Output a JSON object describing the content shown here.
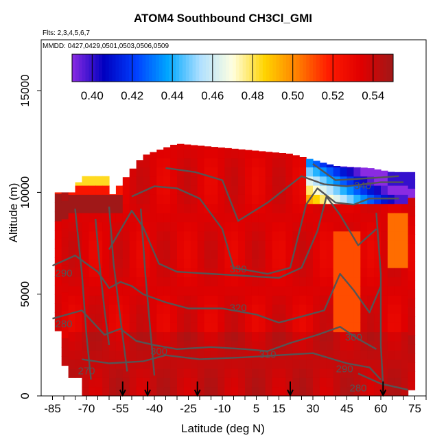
{
  "chart_data": {
    "type": "heatmap",
    "title": "ATOM4 Southbound CH3Cl_GMI",
    "flights_label": "Flts: 2,3,4,5,6,7",
    "dates_label": "MMDD: 0427,0429,0501,0503,0506,0509",
    "xlabel": "Latitude (deg N)",
    "ylabel": "Altitude (m)",
    "xlim": [
      -90,
      80
    ],
    "ylim": [
      0,
      17500
    ],
    "x_ticks": [
      -85,
      -70,
      -55,
      -40,
      -25,
      -10,
      5,
      15,
      30,
      45,
      60,
      75
    ],
    "y_ticks": [
      0,
      5000,
      10000,
      15000
    ],
    "colorbar": {
      "range": [
        0.39,
        0.55
      ],
      "ticks": [
        "0.40",
        "0.42",
        "0.44",
        "0.46",
        "0.48",
        "0.50",
        "0.52",
        "0.54"
      ],
      "colors": [
        "#8a2be2",
        "#0000c0",
        "#0040ff",
        "#00a8ff",
        "#b0e0ff",
        "#ffffe0",
        "#ffd400",
        "#ff8000",
        "#ff1a00",
        "#e00000",
        "#a01818"
      ]
    },
    "grid": false,
    "contour_labels": [
      {
        "value": "340",
        "lat": 52,
        "alt": 10300
      },
      {
        "value": "330",
        "lat": -3,
        "alt": 6200
      },
      {
        "value": "320",
        "lat": -3,
        "alt": 4300
      },
      {
        "value": "310",
        "lat": 10,
        "alt": 2000
      },
      {
        "value": "300",
        "lat": -38,
        "alt": 2150
      },
      {
        "value": "300",
        "lat": 48,
        "alt": 2850
      },
      {
        "value": "290",
        "lat": -80,
        "alt": 6000
      },
      {
        "value": "290",
        "lat": 44,
        "alt": 1300
      },
      {
        "value": "280",
        "lat": -80,
        "alt": 3500
      },
      {
        "value": "280",
        "lat": 50,
        "alt": 350
      },
      {
        "value": "270",
        "lat": -70,
        "alt": 1200
      }
    ],
    "flight_markers_lat": [
      -54,
      -43,
      -21,
      20,
      61
    ],
    "southern_flight_altitudes": [
      {
        "lat": -60,
        "alt": 9700
      },
      {
        "lat": -45,
        "alt": 11800
      },
      {
        "lat": -30,
        "alt": 12400
      },
      {
        "lat": 0,
        "alt": 12100
      },
      {
        "lat": 20,
        "alt": 11900
      },
      {
        "lat": 40,
        "alt": 11300
      },
      {
        "lat": 55,
        "alt": 11200
      },
      {
        "lat": 65,
        "alt": 11000
      }
    ]
  }
}
